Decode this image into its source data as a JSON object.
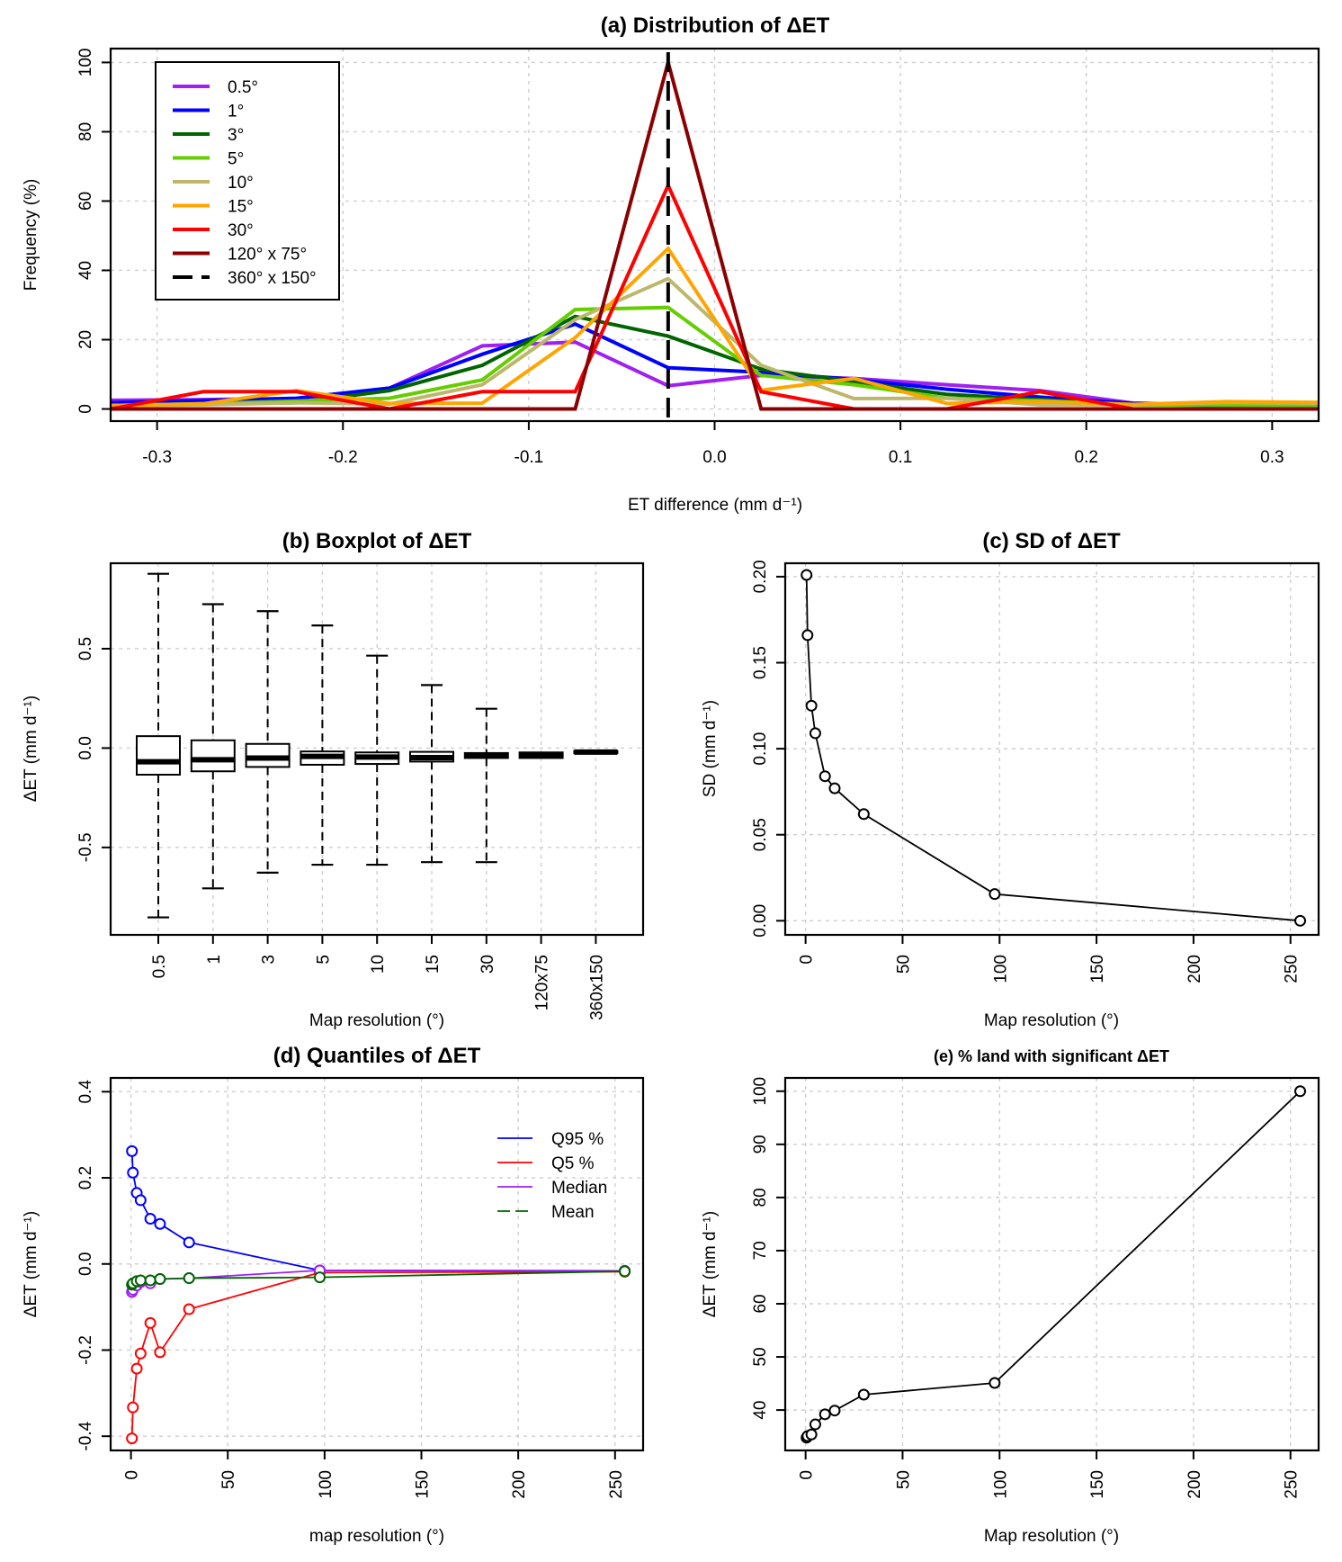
{
  "chart_data": [
    {
      "id": "a",
      "type": "line",
      "title": "(a) Distribution of ΔET",
      "xlabel": "ET difference (mm d⁻¹)",
      "ylabel": "Frequency (%)",
      "xlim": [
        -0.325,
        0.325
      ],
      "ylim": [
        -3.5,
        104
      ],
      "xticks": [
        -0.3,
        -0.2,
        -0.1,
        0.0,
        0.1,
        0.2,
        0.3
      ],
      "xtick_labels": [
        "-0.3",
        "-0.2",
        "-0.1",
        "0.0",
        "0.1",
        "0.2",
        "0.3"
      ],
      "yticks": [
        0,
        20,
        40,
        60,
        80,
        100
      ],
      "ytick_labels": [
        "0",
        "20",
        "40",
        "60",
        "80",
        "100"
      ],
      "grid": true,
      "legend_position": "top-left",
      "x": [
        -0.325,
        -0.275,
        -0.225,
        -0.175,
        -0.125,
        -0.075,
        -0.025,
        0.025,
        0.075,
        0.125,
        0.175,
        0.225,
        0.275,
        0.325
      ],
      "series": [
        {
          "name": "0.5°",
          "color": "#A020F0",
          "values": [
            2.5,
            2.7,
            3.0,
            6.0,
            18.2,
            19.3,
            6.7,
            9.7,
            8.8,
            7.0,
            5.3,
            1.7,
            1.0,
            1.0
          ]
        },
        {
          "name": "1°",
          "color": "#0000FF",
          "values": [
            1.8,
            2.4,
            3.1,
            6.0,
            15.8,
            24.5,
            11.9,
            10.6,
            8.5,
            5.7,
            3.4,
            1.6,
            1.0,
            1.0
          ]
        },
        {
          "name": "3°",
          "color": "#006400",
          "values": [
            1.0,
            1.5,
            1.8,
            5.3,
            12.6,
            26.7,
            21.0,
            11.5,
            7.9,
            4.2,
            2.7,
            1.3,
            1.0,
            1.0
          ]
        },
        {
          "name": "5°",
          "color": "#66CD00",
          "values": [
            1.0,
            1.5,
            2.3,
            3.1,
            8.4,
            28.7,
            29.3,
            9.7,
            7.0,
            3.1,
            2.4,
            1.2,
            1.1,
            1.0
          ]
        },
        {
          "name": "10°",
          "color": "#BDB76B",
          "values": [
            1.0,
            1.2,
            1.8,
            1.4,
            7.0,
            25.8,
            37.6,
            12.6,
            3.0,
            3.1,
            1.2,
            1.2,
            1.9,
            1.7
          ]
        },
        {
          "name": "15°",
          "color": "#FFA500",
          "values": [
            1.0,
            1.5,
            5.3,
            1.6,
            1.7,
            20.6,
            46.3,
            5.4,
            8.8,
            1.6,
            2.1,
            1.3,
            2.1,
            1.9
          ]
        },
        {
          "name": "30°",
          "color": "#FF0000",
          "values": [
            0.0,
            5.0,
            5.0,
            0.0,
            5.0,
            5.0,
            64.5,
            5.0,
            0.0,
            0.0,
            5.0,
            0.0,
            0.0,
            0.0
          ]
        },
        {
          "name": "120° x 75°",
          "color": "#8B0000",
          "values": [
            0.0,
            0.0,
            0.0,
            0.0,
            0.0,
            0.0,
            100.0,
            0.0,
            0.0,
            0.0,
            0.0,
            0.0,
            0.0,
            0.0
          ]
        }
      ],
      "vline": {
        "name": "360° x 150°",
        "color": "#000000",
        "x": -0.025,
        "dashed": true
      }
    },
    {
      "id": "b",
      "type": "boxplot",
      "title": "(b)  Boxplot of ΔET",
      "xlabel": "Map resolution (°)",
      "ylabel": "ΔET  (mm d⁻¹)",
      "ylim": [
        -0.94,
        0.93
      ],
      "yticks": [
        -0.5,
        0.0,
        0.5
      ],
      "ytick_labels": [
        "-0.5",
        "0.0",
        "0.5"
      ],
      "grid": true,
      "categories": [
        "0.5",
        "1",
        "3",
        "5",
        "10",
        "15",
        "30",
        "120x75",
        "360x150"
      ],
      "boxes": [
        {
          "whisker_high": 0.877,
          "q3": 0.06,
          "median": -0.069,
          "q1": -0.134,
          "whisker_low": -0.852
        },
        {
          "whisker_high": 0.724,
          "q3": 0.039,
          "median": -0.059,
          "q1": -0.117,
          "whisker_low": -0.706
        },
        {
          "whisker_high": 0.689,
          "q3": 0.021,
          "median": -0.05,
          "q1": -0.095,
          "whisker_low": -0.627
        },
        {
          "whisker_high": 0.617,
          "q3": -0.017,
          "median": -0.042,
          "q1": -0.084,
          "whisker_low": -0.587
        },
        {
          "whisker_high": 0.465,
          "q3": -0.022,
          "median": -0.045,
          "q1": -0.08,
          "whisker_low": -0.587
        },
        {
          "whisker_high": 0.317,
          "q3": -0.019,
          "median": -0.048,
          "q1": -0.068,
          "whisker_low": -0.574
        },
        {
          "whisker_high": 0.198,
          "q3": -0.025,
          "median": -0.038,
          "q1": -0.05,
          "whisker_low": -0.574
        },
        {
          "whisker_high": null,
          "q3": -0.022,
          "median": -0.035,
          "q1": -0.05,
          "whisker_low": null
        },
        {
          "whisker_high": null,
          "q3": -0.015,
          "median": -0.02,
          "q1": -0.025,
          "whisker_low": null
        }
      ]
    },
    {
      "id": "c",
      "type": "scatter",
      "title": "(c)    SD of ΔET",
      "xlabel": "Map resolution (°)",
      "ylabel": "SD  (mm d⁻¹)",
      "xlim": [
        -10.5,
        264.5
      ],
      "ylim": [
        -0.0082,
        0.2078
      ],
      "xticks": [
        0,
        50,
        100,
        150,
        200,
        250
      ],
      "xtick_labels": [
        "0",
        "50",
        "100",
        "150",
        "200",
        "250"
      ],
      "yticks": [
        0.0,
        0.05,
        0.1,
        0.15,
        0.2
      ],
      "ytick_labels": [
        "0.00",
        "0.05",
        "0.10",
        "0.15",
        "0.20"
      ],
      "grid": true,
      "x": [
        0.5,
        1,
        3,
        5,
        10,
        15,
        30,
        97.5,
        255
      ],
      "y": [
        0.201,
        0.166,
        0.125,
        0.109,
        0.084,
        0.077,
        0.062,
        0.0155,
        0.0
      ]
    },
    {
      "id": "d",
      "type": "scatter",
      "title": "(d)   Quantiles of ΔET",
      "xlabel": "map resolution (°)",
      "ylabel": "ΔET (mm d⁻¹)",
      "xlim": [
        -10.5,
        264.5
      ],
      "ylim": [
        -0.433,
        0.432
      ],
      "xticks": [
        0,
        50,
        100,
        150,
        200,
        250
      ],
      "xtick_labels": [
        "0",
        "50",
        "100",
        "150",
        "200",
        "250"
      ],
      "yticks": [
        -0.4,
        -0.2,
        0.0,
        0.2,
        0.4
      ],
      "ytick_labels": [
        "-0.4",
        "-0.2",
        "0.0",
        "0.2",
        "0.4"
      ],
      "grid": true,
      "legend_position": "top-right",
      "x": [
        0.5,
        1,
        3,
        5,
        10,
        15,
        30,
        97.5,
        255
      ],
      "series": [
        {
          "name": "Q95 %",
          "color": "#0000FF",
          "values": [
            0.262,
            0.212,
            0.165,
            0.148,
            0.105,
            0.093,
            0.05,
            -0.015,
            -0.016
          ]
        },
        {
          "name": "Q5 %",
          "color": "#FF0000",
          "values": [
            -0.405,
            -0.333,
            -0.243,
            -0.208,
            -0.137,
            -0.205,
            -0.105,
            -0.02,
            -0.018
          ]
        },
        {
          "name": "Median",
          "color": "#A020F0",
          "values": [
            -0.065,
            -0.06,
            -0.05,
            -0.042,
            -0.045,
            -0.035,
            -0.033,
            -0.015,
            -0.016
          ]
        },
        {
          "name": "Mean",
          "color": "#006400",
          "values": [
            -0.048,
            -0.045,
            -0.04,
            -0.038,
            -0.038,
            -0.035,
            -0.033,
            -0.031,
            -0.017
          ]
        }
      ]
    },
    {
      "id": "e",
      "type": "scatter",
      "title": "(e)  % land with significant ΔET",
      "xlabel": "Map resolution (°)",
      "ylabel": "ΔET  (mm d⁻¹)",
      "xlim": [
        -10.5,
        264.5
      ],
      "ylim": [
        32.4,
        102.5
      ],
      "xticks": [
        0,
        50,
        100,
        150,
        200,
        250
      ],
      "xtick_labels": [
        "0",
        "50",
        "100",
        "150",
        "200",
        "250"
      ],
      "yticks": [
        40,
        50,
        60,
        70,
        80,
        90,
        100
      ],
      "ytick_labels": [
        "40",
        "50",
        "60",
        "70",
        "80",
        "90",
        "100"
      ],
      "grid": true,
      "x": [
        0.5,
        1,
        3,
        5,
        10,
        15,
        30,
        97.5,
        255
      ],
      "y": [
        34.8,
        35.1,
        35.4,
        37.3,
        39.2,
        39.9,
        42.9,
        45.1,
        100.0
      ]
    }
  ]
}
